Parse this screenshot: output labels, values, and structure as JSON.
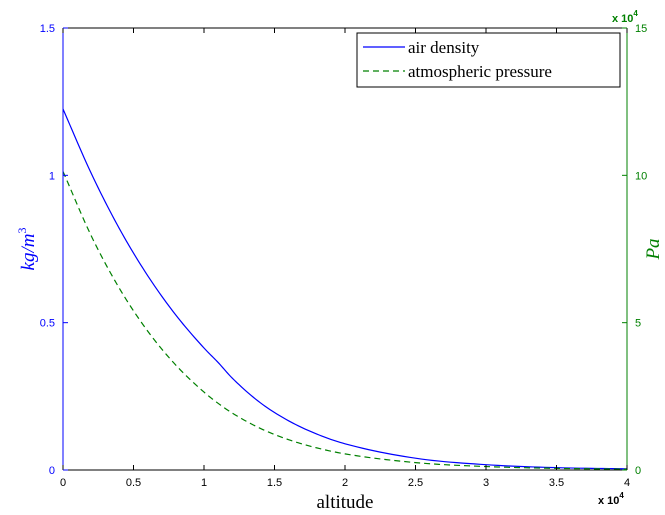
{
  "chart_data": {
    "type": "line",
    "xlabel": "altitude",
    "x_exponent": "x 10",
    "x_exponent_power": "4",
    "xlim": [
      0,
      40000
    ],
    "x_ticks": [
      0,
      5000,
      10000,
      15000,
      20000,
      25000,
      30000,
      35000,
      40000
    ],
    "x_tick_labels": [
      "0",
      "0.5",
      "1",
      "1.5",
      "2",
      "2.5",
      "3",
      "3.5",
      "4"
    ],
    "left_axis": {
      "label": "kg/m³",
      "label_parts": {
        "base": "kg/m",
        "sup": "3"
      },
      "color": "#0000ff",
      "ylim": [
        0,
        1.5
      ],
      "ticks": [
        0,
        0.5,
        1,
        1.5
      ],
      "tick_labels": [
        "0",
        "0.5",
        "1",
        "1.5"
      ]
    },
    "right_axis": {
      "label": "Pa",
      "color": "#008000",
      "exponent": "x 10",
      "exponent_power": "4",
      "ylim": [
        0,
        150000
      ],
      "ticks": [
        0,
        50000,
        100000,
        150000
      ],
      "tick_labels": [
        "0",
        "5",
        "10",
        "15"
      ]
    },
    "series": [
      {
        "name": "air density",
        "axis": "left",
        "color": "#0000ff",
        "style": "solid",
        "x": [
          0,
          2000,
          4000,
          6000,
          8000,
          10000,
          11000,
          12000,
          14000,
          16000,
          18000,
          20000,
          25000,
          30000,
          35000,
          40000
        ],
        "y": [
          1.225,
          1.007,
          0.819,
          0.66,
          0.526,
          0.414,
          0.365,
          0.312,
          0.228,
          0.167,
          0.122,
          0.089,
          0.04,
          0.018,
          0.008,
          0.004
        ]
      },
      {
        "name": "atmospheric pressure",
        "axis": "right",
        "color": "#008000",
        "style": "dashed",
        "x": [
          0,
          2000,
          4000,
          6000,
          8000,
          10000,
          11000,
          12000,
          14000,
          16000,
          18000,
          20000,
          25000,
          30000,
          35000,
          40000
        ],
        "y": [
          101325,
          79495,
          61640,
          47181,
          35600,
          26436,
          22632,
          19330,
          14102,
          10287,
          7505,
          5475,
          2511,
          1172,
          559,
          278
        ]
      }
    ],
    "legend": {
      "position": "top-right",
      "entries": [
        "air density",
        "atmospheric pressure"
      ]
    },
    "grid": false
  }
}
